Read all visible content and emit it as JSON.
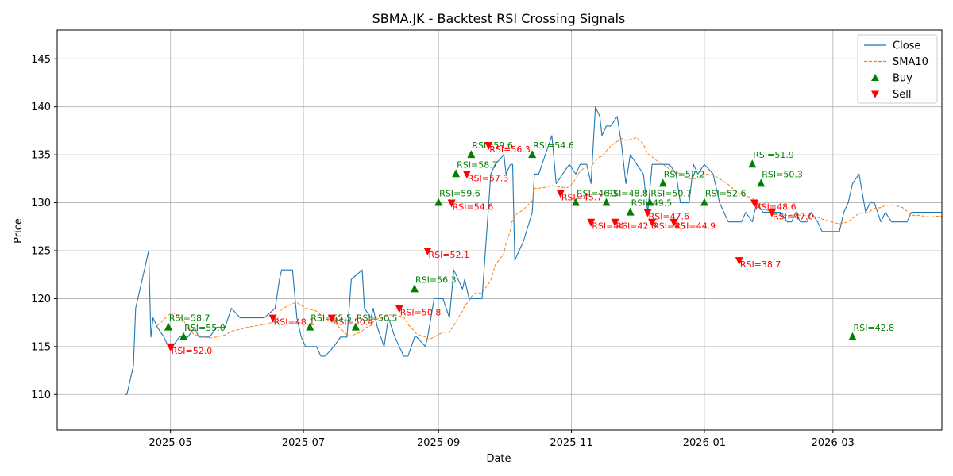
{
  "chart_data": {
    "type": "line",
    "title": "SBMA.JK - Backtest RSI Crossing Signals",
    "xlabel": "Date",
    "ylabel": "Price",
    "xlim": [
      "2025-03-10",
      "2026-04-20"
    ],
    "ylim": [
      106.3,
      148.0
    ],
    "grid": true,
    "legend_position": "top-right",
    "x_ticks": [
      "2025-05-01",
      "2025-07-01",
      "2025-09-01",
      "2025-11-01",
      "2026-01-01",
      "2026-03-01"
    ],
    "x_tick_labels": [
      "2025-05",
      "2025-07",
      "2025-09",
      "2025-11",
      "2026-01",
      "2026-03"
    ],
    "y_ticks": [
      110,
      115,
      120,
      125,
      130,
      135,
      140,
      145
    ],
    "y_tick_labels": [
      "110",
      "115",
      "120",
      "125",
      "130",
      "135",
      "140",
      "145"
    ],
    "colors": {
      "close": "#1f77b4",
      "sma": "#ff7f0e",
      "buy": "#008000",
      "sell": "#ff0000",
      "grid": "#b0b0b0"
    },
    "series": [
      {
        "name": "Close",
        "style": "solid",
        "points": [
          [
            "2025-04-10",
            110
          ],
          [
            "2025-04-11",
            110
          ],
          [
            "2025-04-14",
            113
          ],
          [
            "2025-04-15",
            119
          ],
          [
            "2025-04-17",
            121
          ],
          [
            "2025-04-19",
            123
          ],
          [
            "2025-04-21",
            125
          ],
          [
            "2025-04-22",
            116
          ],
          [
            "2025-04-23",
            118
          ],
          [
            "2025-04-25",
            117
          ],
          [
            "2025-04-28",
            116
          ],
          [
            "2025-04-30",
            115
          ],
          [
            "2025-05-02",
            115
          ],
          [
            "2025-05-05",
            116
          ],
          [
            "2025-05-07",
            116
          ],
          [
            "2025-05-09",
            116
          ],
          [
            "2025-05-12",
            117
          ],
          [
            "2025-05-14",
            116
          ],
          [
            "2025-05-16",
            116
          ],
          [
            "2025-05-19",
            116
          ],
          [
            "2025-05-22",
            117
          ],
          [
            "2025-05-26",
            117
          ],
          [
            "2025-05-29",
            119
          ],
          [
            "2025-06-02",
            118
          ],
          [
            "2025-06-05",
            118
          ],
          [
            "2025-06-10",
            118
          ],
          [
            "2025-06-13",
            118
          ],
          [
            "2025-06-18",
            119
          ],
          [
            "2025-06-20",
            122
          ],
          [
            "2025-06-21",
            123
          ],
          [
            "2025-06-26",
            123
          ],
          [
            "2025-06-28",
            118
          ],
          [
            "2025-06-30",
            116
          ],
          [
            "2025-07-02",
            115
          ],
          [
            "2025-07-07",
            115
          ],
          [
            "2025-07-09",
            114
          ],
          [
            "2025-07-11",
            114
          ],
          [
            "2025-07-15",
            115
          ],
          [
            "2025-07-18",
            116
          ],
          [
            "2025-07-21",
            116
          ],
          [
            "2025-07-23",
            122
          ],
          [
            "2025-07-28",
            123
          ],
          [
            "2025-07-29",
            119
          ],
          [
            "2025-08-01",
            118
          ],
          [
            "2025-08-02",
            119
          ],
          [
            "2025-08-04",
            117
          ],
          [
            "2025-08-07",
            115
          ],
          [
            "2025-08-09",
            118
          ],
          [
            "2025-08-12",
            116
          ],
          [
            "2025-08-16",
            114
          ],
          [
            "2025-08-18",
            114
          ],
          [
            "2025-08-21",
            116
          ],
          [
            "2025-08-22",
            116
          ],
          [
            "2025-08-26",
            115
          ],
          [
            "2025-08-27",
            116
          ],
          [
            "2025-08-30",
            120
          ],
          [
            "2025-09-03",
            120
          ],
          [
            "2025-09-06",
            118
          ],
          [
            "2025-09-08",
            123
          ],
          [
            "2025-09-10",
            122
          ],
          [
            "2025-09-12",
            121
          ],
          [
            "2025-09-13",
            122
          ],
          [
            "2025-09-15",
            120
          ],
          [
            "2025-09-16",
            120
          ],
          [
            "2025-09-18",
            120
          ],
          [
            "2025-09-21",
            120
          ],
          [
            "2025-09-25",
            133
          ],
          [
            "2025-09-27",
            134
          ],
          [
            "2025-10-01",
            135
          ],
          [
            "2025-10-02",
            133
          ],
          [
            "2025-10-04",
            134
          ],
          [
            "2025-10-05",
            134
          ],
          [
            "2025-10-06",
            124
          ],
          [
            "2025-10-10",
            126
          ],
          [
            "2025-10-14",
            129
          ],
          [
            "2025-10-15",
            133
          ],
          [
            "2025-10-17",
            133
          ],
          [
            "2025-10-20",
            135
          ],
          [
            "2025-10-23",
            137
          ],
          [
            "2025-10-25",
            132
          ],
          [
            "2025-10-28",
            133
          ],
          [
            "2025-10-31",
            134
          ],
          [
            "2025-11-03",
            133
          ],
          [
            "2025-11-05",
            134
          ],
          [
            "2025-11-08",
            134
          ],
          [
            "2025-11-10",
            132
          ],
          [
            "2025-11-12",
            140
          ],
          [
            "2025-11-14",
            139
          ],
          [
            "2025-11-15",
            137
          ],
          [
            "2025-11-17",
            138
          ],
          [
            "2025-11-19",
            138
          ],
          [
            "2025-11-22",
            139
          ],
          [
            "2025-11-24",
            136
          ],
          [
            "2025-11-26",
            132
          ],
          [
            "2025-11-28",
            135
          ],
          [
            "2025-12-01",
            134
          ],
          [
            "2025-12-04",
            133
          ],
          [
            "2025-12-06",
            129
          ],
          [
            "2025-12-08",
            134
          ],
          [
            "2025-12-10",
            134
          ],
          [
            "2025-12-13",
            134
          ],
          [
            "2025-12-16",
            134
          ],
          [
            "2025-12-19",
            133
          ],
          [
            "2025-12-21",
            130
          ],
          [
            "2025-12-25",
            130
          ],
          [
            "2025-12-27",
            134
          ],
          [
            "2025-12-29",
            133
          ],
          [
            "2026-01-01",
            134
          ],
          [
            "2026-01-05",
            133
          ],
          [
            "2026-01-08",
            130
          ],
          [
            "2026-01-12",
            128
          ],
          [
            "2026-01-15",
            128
          ],
          [
            "2026-01-18",
            128
          ],
          [
            "2026-01-20",
            129
          ],
          [
            "2026-01-23",
            128
          ],
          [
            "2026-01-25",
            130
          ],
          [
            "2026-01-28",
            129
          ],
          [
            "2026-01-30",
            129
          ],
          [
            "2026-02-02",
            129
          ],
          [
            "2026-02-05",
            129
          ],
          [
            "2026-02-08",
            128
          ],
          [
            "2026-02-10",
            128
          ],
          [
            "2026-02-12",
            129
          ],
          [
            "2026-02-14",
            128
          ],
          [
            "2026-02-17",
            128
          ],
          [
            "2026-02-19",
            129
          ],
          [
            "2026-02-22",
            128
          ],
          [
            "2026-02-24",
            127
          ],
          [
            "2026-02-27",
            127
          ],
          [
            "2026-03-02",
            127
          ],
          [
            "2026-03-04",
            127
          ],
          [
            "2026-03-06",
            129
          ],
          [
            "2026-03-08",
            130
          ],
          [
            "2026-03-10",
            132
          ],
          [
            "2026-03-13",
            133
          ],
          [
            "2026-03-16",
            129
          ],
          [
            "2026-03-18",
            130
          ],
          [
            "2026-03-20",
            130
          ],
          [
            "2026-03-23",
            128
          ],
          [
            "2026-03-25",
            129
          ],
          [
            "2026-03-28",
            128
          ],
          [
            "2026-03-30",
            128
          ],
          [
            "2026-04-02",
            128
          ],
          [
            "2026-04-04",
            128
          ],
          [
            "2026-04-06",
            129
          ],
          [
            "2026-04-09",
            129
          ],
          [
            "2026-04-12",
            129
          ],
          [
            "2026-04-15",
            129
          ],
          [
            "2026-04-17",
            129
          ],
          [
            "2026-04-20",
            129
          ]
        ]
      }
    ],
    "signals": [
      {
        "type": "Buy",
        "x": "2025-04-30",
        "y": 117,
        "label": "RSI=58.7"
      },
      {
        "type": "Sell",
        "x": "2025-05-01",
        "y": 115,
        "label": "RSI=52.0"
      },
      {
        "type": "Buy",
        "x": "2025-05-07",
        "y": 116,
        "label": "RSI=55.0"
      },
      {
        "type": "Sell",
        "x": "2025-06-17",
        "y": 118,
        "label": "RSI=48.1"
      },
      {
        "type": "Buy",
        "x": "2025-07-04",
        "y": 117,
        "label": "RSI=55.5"
      },
      {
        "type": "Sell",
        "x": "2025-07-14",
        "y": 118,
        "label": "RSI=50.4"
      },
      {
        "type": "Buy",
        "x": "2025-07-25",
        "y": 117,
        "label": "RSI=50.5"
      },
      {
        "type": "Sell",
        "x": "2025-08-14",
        "y": 119,
        "label": "RSI=50.8"
      },
      {
        "type": "Buy",
        "x": "2025-08-21",
        "y": 121,
        "label": "RSI=56.3"
      },
      {
        "type": "Sell",
        "x": "2025-08-27",
        "y": 125,
        "label": "RSI=52.1"
      },
      {
        "type": "Buy",
        "x": "2025-09-01",
        "y": 130,
        "label": "RSI=59.6"
      },
      {
        "type": "Sell",
        "x": "2025-09-07",
        "y": 130,
        "label": "RSI=54.6"
      },
      {
        "type": "Buy",
        "x": "2025-09-09",
        "y": 133,
        "label": "RSI=58.7"
      },
      {
        "type": "Sell",
        "x": "2025-09-14",
        "y": 133,
        "label": "RSI=57.3"
      },
      {
        "type": "Buy",
        "x": "2025-09-16",
        "y": 135,
        "label": "RSI=59.6"
      },
      {
        "type": "Sell",
        "x": "2025-09-24",
        "y": 136,
        "label": "RSI=56.3"
      },
      {
        "type": "Buy",
        "x": "2025-10-14",
        "y": 135,
        "label": "RSI=54.6"
      },
      {
        "type": "Sell",
        "x": "2025-10-27",
        "y": 131,
        "label": "RSI=45.7"
      },
      {
        "type": "Buy",
        "x": "2025-11-03",
        "y": 130,
        "label": "RSI=46.3"
      },
      {
        "type": "Sell",
        "x": "2025-11-10",
        "y": 128,
        "label": "RSI=44"
      },
      {
        "type": "Buy",
        "x": "2025-11-17",
        "y": 130,
        "label": "RSI=48.8"
      },
      {
        "type": "Sell",
        "x": "2025-11-21",
        "y": 128,
        "label": "RSI=42.8"
      },
      {
        "type": "Buy",
        "x": "2025-11-28",
        "y": 129,
        "label": "RSI=49.5"
      },
      {
        "type": "Sell",
        "x": "2025-12-06",
        "y": 129,
        "label": "RSI=47.6"
      },
      {
        "type": "Buy",
        "x": "2025-12-07",
        "y": 130,
        "label": "RSI=50.7"
      },
      {
        "type": "Sell",
        "x": "2025-12-08",
        "y": 128,
        "label": "RSI=45"
      },
      {
        "type": "Buy",
        "x": "2025-12-13",
        "y": 132,
        "label": "RSI=57.2"
      },
      {
        "type": "Sell",
        "x": "2025-12-18",
        "y": 128,
        "label": "RSI=44.9"
      },
      {
        "type": "Buy",
        "x": "2026-01-01",
        "y": 130,
        "label": "RSI=52.6"
      },
      {
        "type": "Sell",
        "x": "2026-01-17",
        "y": 124,
        "label": "RSI=38.7"
      },
      {
        "type": "Buy",
        "x": "2026-01-23",
        "y": 134,
        "label": "RSI=51.9"
      },
      {
        "type": "Sell",
        "x": "2026-01-24",
        "y": 130,
        "label": "RSI=48.6"
      },
      {
        "type": "Buy",
        "x": "2026-01-27",
        "y": 132,
        "label": "RSI=50.3"
      },
      {
        "type": "Sell",
        "x": "2026-02-01",
        "y": 129,
        "label": "RSI=47.0"
      },
      {
        "type": "Buy",
        "x": "2026-03-10",
        "y": 116,
        "label": "RSI=42.8"
      }
    ],
    "legend": [
      {
        "label": "Close",
        "kind": "line",
        "color": "#1f77b4",
        "style": "solid"
      },
      {
        "label": "SMA10",
        "kind": "line",
        "color": "#ff7f0e",
        "style": "dashed"
      },
      {
        "label": "Buy",
        "kind": "marker",
        "marker": "triangle-up",
        "color": "#008000"
      },
      {
        "label": "Sell",
        "kind": "marker",
        "marker": "triangle-down",
        "color": "#ff0000"
      }
    ]
  }
}
